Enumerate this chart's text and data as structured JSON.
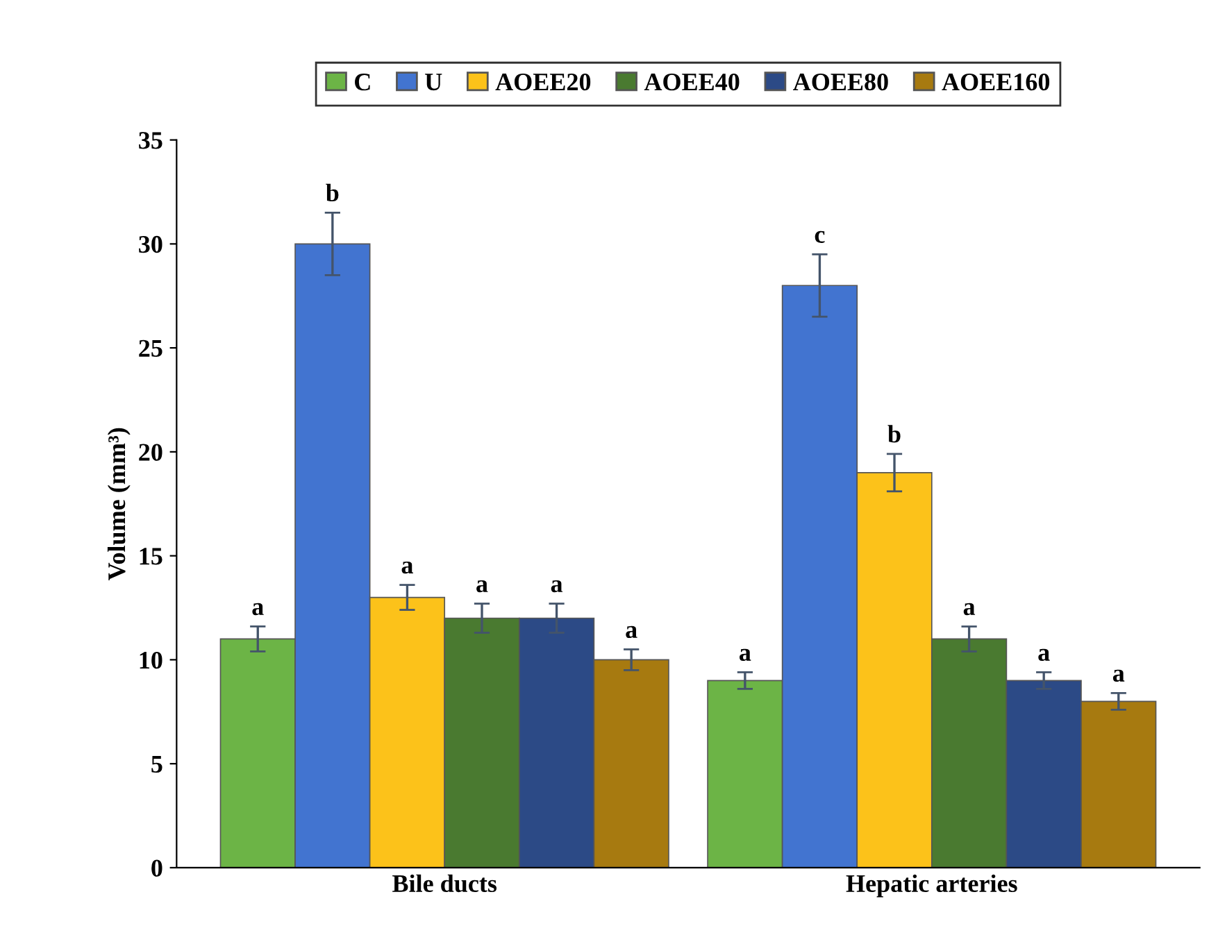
{
  "chart_data": {
    "type": "bar",
    "ylabel": "Volume (mm³)",
    "categories": [
      "Bile ducts",
      "Hepatic arteries"
    ],
    "series": [
      {
        "name": "C",
        "color": "#6cb446",
        "values": [
          11,
          9
        ],
        "errors": [
          0.6,
          0.4
        ],
        "value_labels": [
          "a",
          "a"
        ]
      },
      {
        "name": "U",
        "color": "#4274d0",
        "values": [
          30,
          28
        ],
        "errors": [
          1.5,
          1.5
        ],
        "value_labels": [
          "b",
          "c"
        ]
      },
      {
        "name": "AOEE20",
        "color": "#fcc21a",
        "values": [
          13,
          19
        ],
        "errors": [
          0.6,
          0.9
        ],
        "value_labels": [
          "a",
          "b"
        ]
      },
      {
        "name": "AOEE40",
        "color": "#4a7a30",
        "values": [
          12,
          11
        ],
        "errors": [
          0.7,
          0.6
        ],
        "value_labels": [
          "a",
          "a"
        ]
      },
      {
        "name": "AOEE80",
        "color": "#2c4a86",
        "values": [
          12,
          9
        ],
        "errors": [
          0.7,
          0.4
        ],
        "value_labels": [
          "a",
          "a"
        ]
      },
      {
        "name": "AOEE160",
        "color": "#a77a10",
        "values": [
          10,
          8
        ],
        "errors": [
          0.5,
          0.4
        ],
        "value_labels": [
          "a",
          "a"
        ]
      }
    ],
    "ylim": [
      0,
      35
    ],
    "yticks": [
      0,
      5,
      10,
      15,
      20,
      25,
      30,
      35
    ],
    "grid": false,
    "legend": "top"
  }
}
